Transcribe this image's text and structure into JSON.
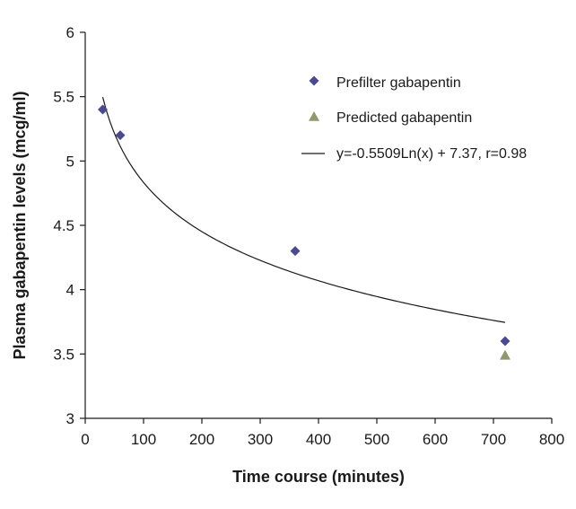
{
  "chart_data": {
    "type": "scatter",
    "xlabel": "Time course (minutes)",
    "ylabel": "Plasma gabapentin levels (mcg/ml)",
    "xlim": [
      0,
      800
    ],
    "ylim": [
      3,
      6
    ],
    "x_ticks": [
      "0",
      "100",
      "200",
      "300",
      "400",
      "500",
      "600",
      "700",
      "800"
    ],
    "y_ticks": [
      "3",
      "3.5",
      "4",
      "4.5",
      "5",
      "5.5",
      "6"
    ],
    "grid": false,
    "legend_position": "top-right",
    "series": [
      {
        "name": "Prefilter gabapentin",
        "marker": "diamond",
        "color": "#4b4a8c",
        "x": [
          30,
          60,
          360,
          720
        ],
        "y": [
          5.4,
          5.2,
          4.3,
          3.6
        ]
      },
      {
        "name": "Predicted gabapentin",
        "marker": "triangle",
        "color": "#8e9a6e",
        "x": [
          720
        ],
        "y": [
          3.49
        ]
      }
    ],
    "trendline": {
      "name": "y=-0.5509Ln(x) + 7.37, r=0.98",
      "type": "logarithmic",
      "a": -0.5509,
      "b": 7.37,
      "x_range": [
        30,
        720
      ],
      "color": "#1a1a1a"
    }
  }
}
